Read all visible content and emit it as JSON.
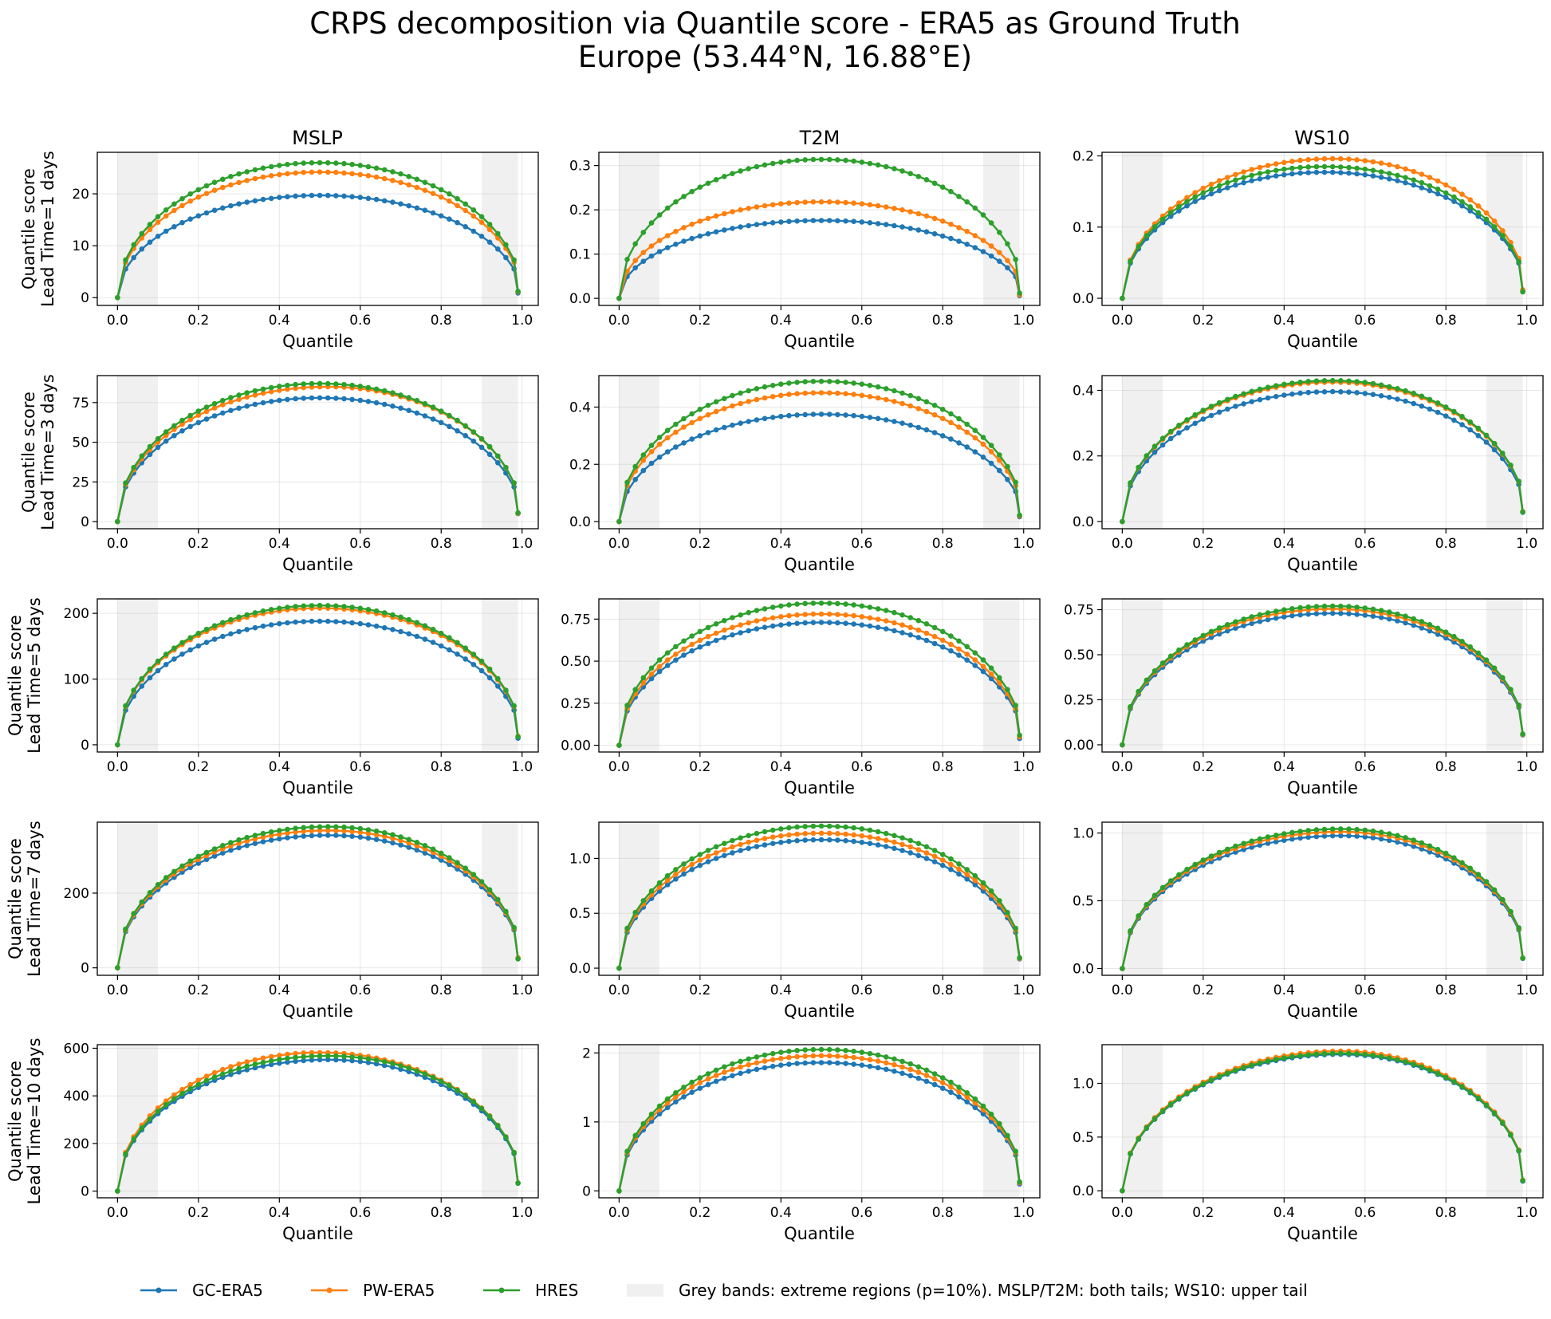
{
  "figure": {
    "title_line1": "CRPS decomposition via Quantile score - ERA5 as Ground Truth",
    "title_line2": "Europe (53.44°N, 16.88°E)",
    "columns": [
      "MSLP",
      "T2M",
      "WS10"
    ],
    "row_labels": [
      [
        "Quantile score",
        "Lead Time=1 days"
      ],
      [
        "Quantile score",
        "Lead Time=3 days"
      ],
      [
        "Quantile score",
        "Lead Time=5 days"
      ],
      [
        "Quantile score",
        "Lead Time=7 days"
      ],
      [
        "Quantile score",
        "Lead Time=10 days"
      ]
    ],
    "xlabel": "Quantile",
    "x_ticks": [
      "0.0",
      "0.2",
      "0.4",
      "0.6",
      "0.8",
      "1.0"
    ]
  },
  "legend": {
    "series": [
      {
        "name": "GC-ERA5",
        "color": "#1f77b4"
      },
      {
        "name": "PW-ERA5",
        "color": "#ff7f0e"
      },
      {
        "name": "HRES",
        "color": "#2ca02c"
      }
    ],
    "band_label": "Grey bands: extreme regions (p=10%). MSLP/T2M: both tails; WS10: upper tail",
    "band_color": "#f0f0f0"
  },
  "chart_data": {
    "type": "line",
    "x_range": [
      0.0,
      0.99
    ],
    "x_step": 0.02,
    "x_note": "quantile levels 0.00, 0.02, ..., 0.98, 0.99",
    "grid": true,
    "grey_bands": [
      [
        0.0,
        0.1
      ],
      [
        0.9,
        0.99
      ]
    ],
    "panels": [
      {
        "row": 0,
        "col": "MSLP",
        "ylim": [
          -1.5,
          28
        ],
        "yticks": [
          0,
          10,
          20
        ],
        "peaks": {
          "GC-ERA5": 19.7,
          "PW-ERA5": 24.2,
          "HRES": 26.0
        },
        "peak_pos": {
          "GC-ERA5": 0.5,
          "PW-ERA5": 0.5,
          "HRES": 0.5
        },
        "end_values": {
          "GC-ERA5": 0.9,
          "PW-ERA5": 1.1,
          "HRES": 1.2
        }
      },
      {
        "row": 0,
        "col": "T2M",
        "ylim": [
          -0.016,
          0.33
        ],
        "yticks": [
          0.0,
          0.1,
          0.2,
          0.3
        ],
        "peaks": {
          "GC-ERA5": 0.176,
          "PW-ERA5": 0.218,
          "HRES": 0.314
        },
        "peak_pos": {
          "GC-ERA5": 0.5,
          "PW-ERA5": 0.5,
          "HRES": 0.5
        },
        "end_values": {
          "GC-ERA5": 0.006,
          "PW-ERA5": 0.008,
          "HRES": 0.012
        }
      },
      {
        "row": 0,
        "col": "WS10",
        "ylim": [
          -0.01,
          0.205
        ],
        "yticks": [
          0.0,
          0.1,
          0.2
        ],
        "peaks": {
          "GC-ERA5": 0.177,
          "PW-ERA5": 0.196,
          "HRES": 0.185
        },
        "peak_pos": {
          "GC-ERA5": 0.5,
          "PW-ERA5": 0.52,
          "HRES": 0.5
        },
        "end_values": {
          "GC-ERA5": 0.01,
          "PW-ERA5": 0.012,
          "HRES": 0.009
        }
      },
      {
        "row": 1,
        "col": "MSLP",
        "ylim": [
          -4.5,
          92
        ],
        "yticks": [
          0,
          25,
          50,
          75
        ],
        "peaks": {
          "GC-ERA5": 78,
          "PW-ERA5": 85,
          "HRES": 87
        },
        "peak_pos": {
          "GC-ERA5": 0.5,
          "PW-ERA5": 0.52,
          "HRES": 0.5
        },
        "end_values": {
          "GC-ERA5": 5,
          "PW-ERA5": 5.2,
          "HRES": 5.5
        }
      },
      {
        "row": 1,
        "col": "T2M",
        "ylim": [
          -0.025,
          0.51
        ],
        "yticks": [
          0.0,
          0.2,
          0.4
        ],
        "peaks": {
          "GC-ERA5": 0.375,
          "PW-ERA5": 0.45,
          "HRES": 0.49
        },
        "peak_pos": {
          "GC-ERA5": 0.5,
          "PW-ERA5": 0.5,
          "HRES": 0.5
        },
        "end_values": {
          "GC-ERA5": 0.017,
          "PW-ERA5": 0.02,
          "HRES": 0.022
        }
      },
      {
        "row": 1,
        "col": "WS10",
        "ylim": [
          -0.022,
          0.445
        ],
        "yticks": [
          0.0,
          0.2,
          0.4
        ],
        "peaks": {
          "GC-ERA5": 0.396,
          "PW-ERA5": 0.425,
          "HRES": 0.43
        },
        "peak_pos": {
          "GC-ERA5": 0.52,
          "PW-ERA5": 0.52,
          "HRES": 0.52
        },
        "end_values": {
          "GC-ERA5": 0.028,
          "PW-ERA5": 0.03,
          "HRES": 0.029
        }
      },
      {
        "row": 2,
        "col": "MSLP",
        "ylim": [
          -11,
          222
        ],
        "yticks": [
          0,
          100,
          200
        ],
        "peaks": {
          "GC-ERA5": 188,
          "PW-ERA5": 208,
          "HRES": 212
        },
        "peak_pos": {
          "GC-ERA5": 0.5,
          "PW-ERA5": 0.5,
          "HRES": 0.5
        },
        "end_values": {
          "GC-ERA5": 10,
          "PW-ERA5": 13,
          "HRES": 12
        }
      },
      {
        "row": 2,
        "col": "T2M",
        "ylim": [
          -0.04,
          0.87
        ],
        "yticks": [
          0.0,
          0.25,
          0.5,
          0.75
        ],
        "peaks": {
          "GC-ERA5": 0.73,
          "PW-ERA5": 0.78,
          "HRES": 0.845
        },
        "peak_pos": {
          "GC-ERA5": 0.5,
          "PW-ERA5": 0.5,
          "HRES": 0.5
        },
        "end_values": {
          "GC-ERA5": 0.04,
          "PW-ERA5": 0.05,
          "HRES": 0.06
        }
      },
      {
        "row": 2,
        "col": "WS10",
        "ylim": [
          -0.04,
          0.81
        ],
        "yticks": [
          0.0,
          0.25,
          0.5,
          0.75
        ],
        "peaks": {
          "GC-ERA5": 0.73,
          "PW-ERA5": 0.755,
          "HRES": 0.77
        },
        "peak_pos": {
          "GC-ERA5": 0.52,
          "PW-ERA5": 0.52,
          "HRES": 0.52
        },
        "end_values": {
          "GC-ERA5": 0.055,
          "PW-ERA5": 0.058,
          "HRES": 0.06
        }
      },
      {
        "row": 3,
        "col": "MSLP",
        "ylim": [
          -20,
          390
        ],
        "yticks": [
          0,
          200
        ],
        "peaks": {
          "GC-ERA5": 355,
          "PW-ERA5": 368,
          "HRES": 378
        },
        "peak_pos": {
          "GC-ERA5": 0.52,
          "PW-ERA5": 0.52,
          "HRES": 0.52
        },
        "end_values": {
          "GC-ERA5": 25,
          "PW-ERA5": 27,
          "HRES": 24
        }
      },
      {
        "row": 3,
        "col": "T2M",
        "ylim": [
          -0.065,
          1.33
        ],
        "yticks": [
          0.0,
          0.5,
          1.0
        ],
        "peaks": {
          "GC-ERA5": 1.17,
          "PW-ERA5": 1.23,
          "HRES": 1.295
        },
        "peak_pos": {
          "GC-ERA5": 0.5,
          "PW-ERA5": 0.5,
          "HRES": 0.5
        },
        "end_values": {
          "GC-ERA5": 0.085,
          "PW-ERA5": 0.09,
          "HRES": 0.095
        }
      },
      {
        "row": 3,
        "col": "WS10",
        "ylim": [
          -0.05,
          1.08
        ],
        "yticks": [
          0.0,
          0.5,
          1.0
        ],
        "peaks": {
          "GC-ERA5": 0.98,
          "PW-ERA5": 1.01,
          "HRES": 1.03
        },
        "peak_pos": {
          "GC-ERA5": 0.54,
          "PW-ERA5": 0.54,
          "HRES": 0.54
        },
        "end_values": {
          "GC-ERA5": 0.075,
          "PW-ERA5": 0.078,
          "HRES": 0.077
        }
      },
      {
        "row": 4,
        "col": "MSLP",
        "ylim": [
          -28,
          615
        ],
        "yticks": [
          0,
          200,
          400,
          600
        ],
        "peaks": {
          "GC-ERA5": 552,
          "PW-ERA5": 582,
          "HRES": 568
        },
        "peak_pos": {
          "GC-ERA5": 0.52,
          "PW-ERA5": 0.5,
          "HRES": 0.52
        },
        "end_values": {
          "GC-ERA5": 33,
          "PW-ERA5": 35,
          "HRES": 34
        }
      },
      {
        "row": 4,
        "col": "T2M",
        "ylim": [
          -0.1,
          2.12
        ],
        "yticks": [
          0,
          1,
          2
        ],
        "peaks": {
          "GC-ERA5": 1.86,
          "PW-ERA5": 1.96,
          "HRES": 2.05
        },
        "peak_pos": {
          "GC-ERA5": 0.5,
          "PW-ERA5": 0.5,
          "HRES": 0.5
        },
        "end_values": {
          "GC-ERA5": 0.1,
          "PW-ERA5": 0.12,
          "HRES": 0.13
        }
      },
      {
        "row": 4,
        "col": "WS10",
        "ylim": [
          -0.065,
          1.36
        ],
        "yticks": [
          0.0,
          0.5,
          1.0
        ],
        "peaks": {
          "GC-ERA5": 1.27,
          "PW-ERA5": 1.3,
          "HRES": 1.28
        },
        "peak_pos": {
          "GC-ERA5": 0.54,
          "PW-ERA5": 0.54,
          "HRES": 0.54
        },
        "end_values": {
          "GC-ERA5": 0.09,
          "PW-ERA5": 0.1,
          "HRES": 0.095
        }
      }
    ]
  }
}
